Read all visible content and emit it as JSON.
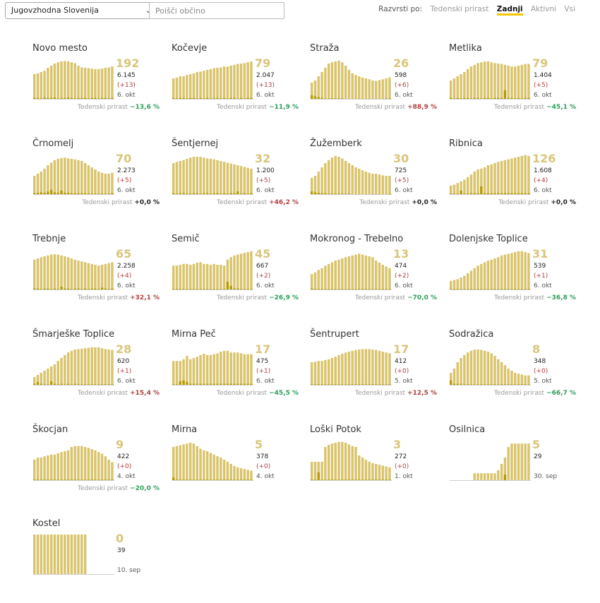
{
  "filters": {
    "region": "Jugovzhodna Slovenija",
    "search_placeholder": "Poišči občino",
    "sort_label": "Razvrsti po:",
    "sort_options": [
      {
        "label": "Tedenski prirast",
        "active": false
      },
      {
        "label": "Zadnji",
        "active": true
      },
      {
        "label": "Aktivni",
        "active": false
      },
      {
        "label": "Vsi",
        "active": false
      }
    ]
  },
  "colors": {
    "bar": "#d9c46c",
    "bar_new": "#b49a00",
    "big_number": "#d9c57b",
    "negative": "#2e9e5b",
    "positive": "#b04040"
  },
  "growth_label": "Tedenski prirast",
  "chart_data": [
    {
      "type": "bar",
      "name": "Novo mesto",
      "active": "192",
      "total": "6.145",
      "delta": "(+13)",
      "date": "6. okt",
      "growth": "−13,6 %",
      "trend": "neg",
      "values": [
        60,
        62,
        65,
        68,
        75,
        80,
        85,
        88,
        90,
        91,
        90,
        88,
        86,
        80,
        76,
        75,
        74,
        73,
        72,
        72,
        73,
        75,
        76,
        78
      ],
      "new_values": [
        4,
        4,
        3,
        5,
        4,
        4,
        5,
        3,
        4,
        4,
        5,
        4,
        3,
        4,
        4,
        4,
        3,
        4,
        4,
        3,
        4,
        4,
        3,
        4
      ]
    },
    {
      "type": "bar",
      "name": "Kočevje",
      "active": "79",
      "total": "2.047",
      "delta": "(+13)",
      "date": "6. okt",
      "growth": "−11,9 %",
      "trend": "neg",
      "values": [
        50,
        52,
        55,
        55,
        58,
        60,
        62,
        65,
        66,
        68,
        70,
        72,
        74,
        75,
        76,
        78,
        78,
        80,
        82,
        84,
        85,
        86,
        88,
        90
      ],
      "new_values": [
        4,
        3,
        4,
        4,
        3,
        4,
        4,
        3,
        4,
        3,
        4,
        3,
        4,
        4,
        3,
        4,
        3,
        4,
        4,
        3,
        4,
        3,
        4,
        4
      ]
    },
    {
      "type": "bar",
      "name": "Straža",
      "active": "26",
      "total": "598",
      "delta": "(+6)",
      "date": "6. okt",
      "growth": "+88,9 %",
      "trend": "pos",
      "values": [
        40,
        45,
        55,
        65,
        75,
        85,
        88,
        90,
        92,
        88,
        80,
        70,
        62,
        58,
        55,
        52,
        50,
        48,
        45,
        44,
        46,
        48,
        50,
        52
      ],
      "new_values": [
        10,
        8,
        6,
        4,
        3,
        3,
        3,
        3,
        3,
        3,
        2,
        2,
        2,
        2,
        2,
        2,
        2,
        2,
        2,
        2,
        2,
        2,
        3,
        3
      ]
    },
    {
      "type": "bar",
      "name": "Metlika",
      "active": "79",
      "total": "1.404",
      "delta": "(+5)",
      "date": "6. okt",
      "growth": "−45,1 %",
      "trend": "neg",
      "values": [
        45,
        50,
        55,
        60,
        65,
        72,
        78,
        82,
        86,
        88,
        90,
        90,
        88,
        86,
        85,
        84,
        82,
        80,
        78,
        78,
        80,
        82,
        84,
        84
      ],
      "new_values": [
        4,
        3,
        4,
        3,
        4,
        4,
        3,
        4,
        4,
        3,
        4,
        4,
        3,
        4,
        4,
        4,
        22,
        4,
        4,
        3,
        4,
        3,
        4,
        4
      ]
    },
    {
      "type": "bar",
      "name": "Črnomelj",
      "active": "70",
      "total": "2.273",
      "delta": "(+5)",
      "date": "6. okt",
      "growth": "+0,0 %",
      "trend": "zero",
      "values": [
        45,
        50,
        55,
        62,
        70,
        76,
        82,
        85,
        87,
        88,
        86,
        85,
        84,
        82,
        80,
        75,
        70,
        65,
        60,
        55,
        52,
        50,
        50,
        52
      ],
      "new_values": [
        4,
        5,
        6,
        5,
        8,
        12,
        6,
        5,
        10,
        5,
        5,
        4,
        4,
        4,
        4,
        4,
        3,
        3,
        3,
        3,
        3,
        3,
        3,
        4
      ]
    },
    {
      "type": "bar",
      "name": "Šentjernej",
      "active": "32",
      "total": "1.200",
      "delta": "(+5)",
      "date": "6. okt",
      "growth": "+46,2 %",
      "trend": "pos",
      "values": [
        75,
        78,
        80,
        82,
        85,
        88,
        90,
        90,
        90,
        88,
        86,
        85,
        84,
        82,
        80,
        78,
        76,
        74,
        72,
        70,
        68,
        66,
        64,
        62
      ],
      "new_values": [
        4,
        3,
        4,
        4,
        3,
        3,
        4,
        4,
        3,
        4,
        4,
        3,
        4,
        4,
        3,
        4,
        3,
        4,
        4,
        8,
        3,
        4,
        3,
        4
      ]
    },
    {
      "type": "bar",
      "name": "Žužemberk",
      "active": "30",
      "total": "725",
      "delta": "(+5)",
      "date": "6. okt",
      "growth": "+0,0 %",
      "trend": "zero",
      "values": [
        40,
        45,
        55,
        65,
        75,
        82,
        88,
        92,
        90,
        86,
        80,
        75,
        70,
        65,
        62,
        58,
        55,
        52,
        50,
        50,
        48,
        46,
        45,
        45
      ],
      "new_values": [
        8,
        6,
        5,
        4,
        4,
        3,
        3,
        3,
        3,
        3,
        3,
        3,
        2,
        2,
        2,
        2,
        2,
        2,
        2,
        2,
        2,
        2,
        2,
        3
      ]
    },
    {
      "type": "bar",
      "name": "Ribnica",
      "active": "126",
      "total": "1.608",
      "delta": "(+4)",
      "date": "6. okt",
      "growth": "+0,0 %",
      "trend": "zero",
      "values": [
        22,
        24,
        28,
        32,
        36,
        42,
        48,
        55,
        60,
        62,
        65,
        70,
        72,
        75,
        78,
        80,
        82,
        84,
        86,
        88,
        90,
        92,
        94,
        92
      ],
      "new_values": [
        3,
        3,
        3,
        10,
        3,
        3,
        4,
        4,
        4,
        20,
        4,
        4,
        4,
        4,
        4,
        4,
        4,
        4,
        4,
        4,
        4,
        4,
        4,
        4
      ]
    },
    {
      "type": "bar",
      "name": "Trebnje",
      "active": "65",
      "total": "2.258",
      "delta": "(+4)",
      "date": "6. okt",
      "growth": "+32,1 %",
      "trend": "pos",
      "values": [
        72,
        75,
        78,
        80,
        82,
        84,
        85,
        84,
        82,
        80,
        78,
        75,
        72,
        70,
        68,
        66,
        64,
        62,
        60,
        58,
        60,
        62,
        64,
        66
      ],
      "new_values": [
        4,
        4,
        3,
        4,
        4,
        3,
        4,
        3,
        8,
        4,
        4,
        3,
        4,
        4,
        3,
        4,
        3,
        4,
        4,
        3,
        6,
        4,
        3,
        4
      ]
    },
    {
      "type": "bar",
      "name": "Semič",
      "active": "45",
      "total": "667",
      "delta": "(+2)",
      "date": "6. okt",
      "growth": "−26,9 %",
      "trend": "neg",
      "values": [
        58,
        58,
        60,
        62,
        62,
        60,
        62,
        65,
        66,
        62,
        62,
        60,
        62,
        60,
        60,
        58,
        72,
        78,
        82,
        84,
        86,
        88,
        90,
        92
      ],
      "new_values": [
        3,
        3,
        3,
        3,
        3,
        3,
        3,
        3,
        3,
        3,
        3,
        3,
        3,
        3,
        3,
        3,
        20,
        10,
        4,
        4,
        3,
        3,
        3,
        3
      ]
    },
    {
      "type": "bar",
      "name": "Mokronog - Trebelno",
      "active": "13",
      "total": "474",
      "delta": "(+2)",
      "date": "6. okt",
      "growth": "−70,0 %",
      "trend": "neg",
      "values": [
        38,
        42,
        48,
        52,
        58,
        62,
        66,
        70,
        72,
        75,
        78,
        80,
        82,
        84,
        86,
        84,
        82,
        80,
        78,
        70,
        65,
        60,
        56,
        52
      ],
      "new_values": [
        4,
        3,
        3,
        3,
        3,
        3,
        3,
        3,
        3,
        3,
        3,
        3,
        3,
        3,
        3,
        3,
        3,
        3,
        3,
        3,
        3,
        3,
        3,
        3
      ]
    },
    {
      "type": "bar",
      "name": "Dolenjske Toplice",
      "active": "31",
      "total": "539",
      "delta": "(+1)",
      "date": "6. okt",
      "growth": "−36,8 %",
      "trend": "neg",
      "values": [
        22,
        24,
        26,
        30,
        34,
        40,
        46,
        52,
        58,
        62,
        66,
        70,
        72,
        75,
        78,
        82,
        84,
        86,
        88,
        90,
        92,
        92,
        90,
        88
      ],
      "new_values": [
        3,
        3,
        3,
        3,
        3,
        3,
        3,
        3,
        3,
        3,
        3,
        3,
        3,
        3,
        3,
        3,
        3,
        3,
        3,
        3,
        3,
        3,
        3,
        3
      ]
    },
    {
      "type": "bar",
      "name": "Šmarješke Toplice",
      "active": "28",
      "total": "620",
      "delta": "(+1)",
      "date": "6. okt",
      "growth": "+15,4 %",
      "trend": "pos",
      "values": [
        20,
        25,
        30,
        35,
        40,
        45,
        50,
        58,
        65,
        72,
        78,
        82,
        85,
        86,
        87,
        88,
        89,
        90,
        90,
        90,
        88,
        86,
        85,
        84
      ],
      "new_values": [
        4,
        8,
        4,
        3,
        3,
        10,
        4,
        3,
        4,
        3,
        4,
        3,
        4,
        3,
        3,
        3,
        3,
        3,
        3,
        3,
        3,
        3,
        3,
        3
      ]
    },
    {
      "type": "bar",
      "name": "Mirna Peč",
      "active": "17",
      "total": "475",
      "delta": "(+1)",
      "date": "6. okt",
      "growth": "−45,5 %",
      "trend": "neg",
      "values": [
        58,
        58,
        58,
        62,
        70,
        62,
        65,
        68,
        72,
        75,
        72,
        72,
        74,
        76,
        80,
        82,
        82,
        78,
        78,
        78,
        76,
        74,
        74,
        74
      ],
      "new_values": [
        3,
        3,
        10,
        12,
        8,
        4,
        4,
        4,
        4,
        4,
        4,
        4,
        4,
        4,
        4,
        4,
        4,
        4,
        4,
        4,
        4,
        4,
        4,
        4
      ]
    },
    {
      "type": "bar",
      "name": "Šentrupert",
      "active": "17",
      "total": "412",
      "delta": "(+0)",
      "date": "5. okt",
      "growth": "+12,5 %",
      "trend": "pos",
      "values": [
        55,
        56,
        58,
        58,
        60,
        62,
        65,
        68,
        72,
        75,
        78,
        80,
        82,
        84,
        85,
        86,
        86,
        86,
        85,
        84,
        82,
        80,
        78,
        76
      ],
      "new_values": [
        3,
        3,
        3,
        3,
        3,
        3,
        3,
        3,
        3,
        3,
        3,
        3,
        3,
        3,
        3,
        3,
        3,
        3,
        3,
        3,
        3,
        3,
        3,
        3
      ]
    },
    {
      "type": "bar",
      "name": "Sodražica",
      "active": "8",
      "total": "348",
      "delta": "(+0)",
      "date": "5. okt",
      "growth": "−66,7 %",
      "trend": "neg",
      "values": [
        30,
        40,
        55,
        65,
        72,
        78,
        82,
        85,
        85,
        84,
        82,
        80,
        76,
        70,
        62,
        55,
        48,
        40,
        35,
        30,
        28,
        26,
        24,
        24
      ],
      "new_values": [
        12,
        4,
        4,
        4,
        3,
        3,
        3,
        3,
        3,
        3,
        3,
        3,
        3,
        3,
        3,
        3,
        3,
        3,
        3,
        3,
        3,
        3,
        3,
        3
      ]
    },
    {
      "type": "bar",
      "name": "Škocjan",
      "active": "9",
      "total": "422",
      "delta": "(+0)",
      "date": "4. okt",
      "growth": "−20,0 %",
      "trend": "neg",
      "values": [
        50,
        55,
        55,
        58,
        60,
        62,
        62,
        65,
        68,
        70,
        72,
        80,
        82,
        82,
        82,
        80,
        78,
        75,
        72,
        68,
        64,
        58,
        50,
        44
      ],
      "new_values": [
        3,
        3,
        3,
        3,
        3,
        3,
        3,
        3,
        3,
        3,
        3,
        3,
        3,
        3,
        3,
        3,
        3,
        3,
        3,
        3,
        3,
        3,
        3,
        3
      ]
    },
    {
      "type": "bar",
      "name": "Mirna",
      "active": "5",
      "total": "378",
      "delta": "(+0)",
      "date": "4. okt",
      "growth": "",
      "trend": "zero",
      "values": [
        80,
        82,
        84,
        86,
        88,
        90,
        88,
        82,
        76,
        72,
        70,
        66,
        62,
        58,
        55,
        50,
        45,
        40,
        35,
        32,
        30,
        28,
        26,
        24
      ],
      "new_values": [
        8,
        3,
        3,
        3,
        3,
        3,
        3,
        3,
        3,
        3,
        3,
        3,
        3,
        3,
        3,
        3,
        3,
        3,
        3,
        3,
        3,
        3,
        3,
        3
      ]
    },
    {
      "type": "bar",
      "name": "Loški Potok",
      "active": "3",
      "total": "272",
      "delta": "(+0)",
      "date": "1. okt",
      "growth": "",
      "trend": "zero",
      "values": [
        45,
        45,
        45,
        45,
        80,
        85,
        88,
        90,
        92,
        92,
        90,
        86,
        82,
        80,
        60,
        55,
        50,
        45,
        42,
        40,
        38,
        36,
        34,
        32
      ],
      "new_values": [
        3,
        3,
        20,
        3,
        3,
        3,
        3,
        3,
        3,
        3,
        3,
        3,
        3,
        3,
        3,
        3,
        3,
        3,
        3,
        3,
        3,
        3,
        3,
        3
      ]
    },
    {
      "type": "bar",
      "name": "Osilnica",
      "active": "5",
      "total": "29",
      "delta": "",
      "date": "30. sep",
      "growth": "",
      "trend": "zero",
      "values": [
        0,
        0,
        0,
        0,
        0,
        0,
        0,
        18,
        18,
        18,
        18,
        18,
        18,
        18,
        25,
        40,
        55,
        80,
        88,
        88,
        88,
        88,
        88,
        88
      ],
      "new_values": [
        0,
        0,
        0,
        0,
        0,
        0,
        0,
        0,
        0,
        0,
        0,
        0,
        0,
        0,
        0,
        0,
        15,
        0,
        0,
        0,
        0,
        0,
        0,
        0
      ]
    },
    {
      "type": "bar",
      "name": "Kostel",
      "active": "0",
      "total": "39",
      "delta": "",
      "date": "10. sep",
      "growth": "",
      "trend": "zero",
      "values": [
        95,
        95,
        95,
        95,
        95,
        95,
        95,
        95,
        95,
        95,
        95,
        95,
        95,
        95,
        95,
        95,
        0,
        0,
        0,
        0,
        0,
        0,
        0,
        0
      ],
      "new_values": [
        0,
        0,
        0,
        0,
        0,
        0,
        0,
        0,
        0,
        0,
        0,
        0,
        0,
        0,
        0,
        0,
        0,
        0,
        0,
        0,
        0,
        0,
        0,
        0
      ]
    }
  ]
}
